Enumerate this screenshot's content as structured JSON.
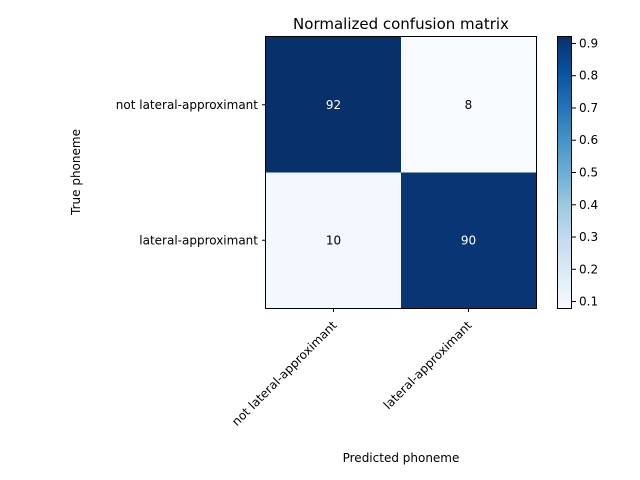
{
  "chart_data": {
    "type": "heatmap",
    "title": "Normalized confusion matrix",
    "xlabel": "Predicted phoneme",
    "ylabel": "True phoneme",
    "x_categories": [
      "not lateral-approximant",
      "lateral-approximant"
    ],
    "y_categories": [
      "not lateral-approximant",
      "lateral-approximant"
    ],
    "matrix": [
      [
        0.92,
        0.08
      ],
      [
        0.1,
        0.9
      ]
    ],
    "cell_labels": [
      [
        "92",
        "8"
      ],
      [
        "10",
        "90"
      ]
    ],
    "colormap": "Blues",
    "colorbar": {
      "range": [
        0.08,
        0.92
      ],
      "ticks": [
        "0.1",
        "0.2",
        "0.3",
        "0.4",
        "0.5",
        "0.6",
        "0.7",
        "0.8",
        "0.9"
      ]
    }
  }
}
